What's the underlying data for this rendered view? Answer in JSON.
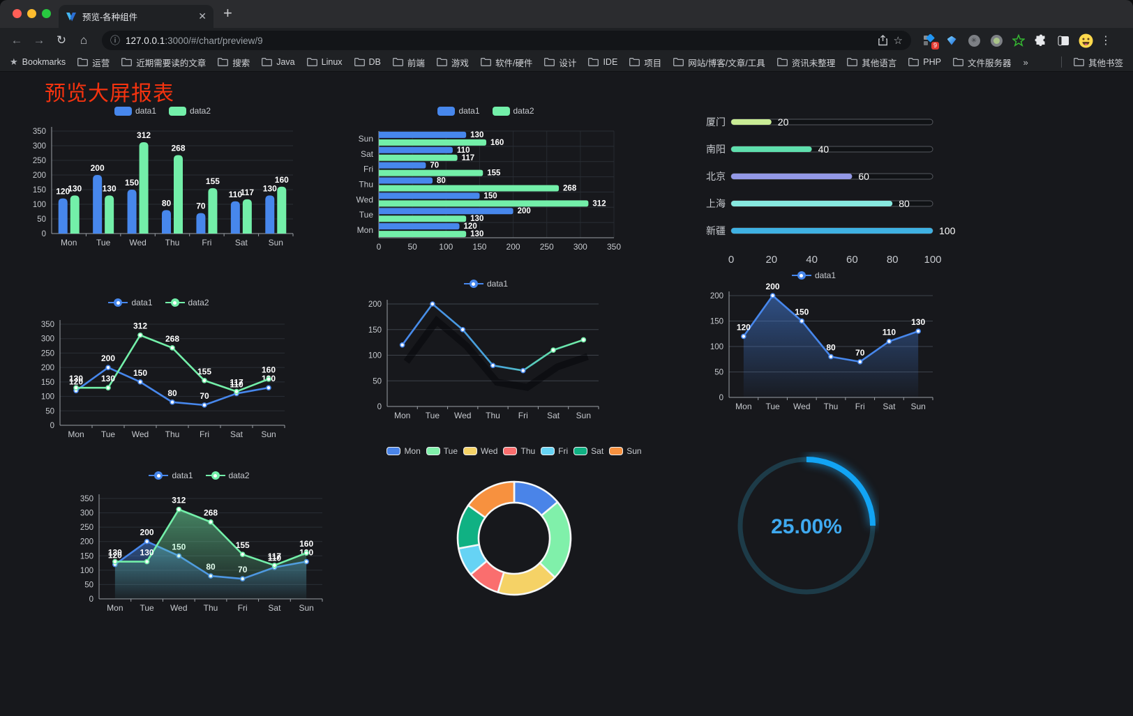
{
  "browser": {
    "tab_title": "预览-各种组件",
    "url_host": "127.0.0.1",
    "url_path": ":3000/#/chart/preview/9",
    "new_tab_label": "+",
    "extensions_badge": "9",
    "bookmarks": [
      {
        "icon": "star",
        "label": "Bookmarks"
      },
      {
        "icon": "folder",
        "label": "运营"
      },
      {
        "icon": "folder",
        "label": "近期需要读的文章"
      },
      {
        "icon": "folder",
        "label": "搜索"
      },
      {
        "icon": "folder",
        "label": "Java"
      },
      {
        "icon": "folder",
        "label": "Linux"
      },
      {
        "icon": "folder",
        "label": "DB"
      },
      {
        "icon": "folder",
        "label": "前端"
      },
      {
        "icon": "folder",
        "label": "游戏"
      },
      {
        "icon": "folder",
        "label": "软件/硬件"
      },
      {
        "icon": "folder",
        "label": "设计"
      },
      {
        "icon": "folder",
        "label": "IDE"
      },
      {
        "icon": "folder",
        "label": "项目"
      },
      {
        "icon": "folder",
        "label": "网站/博客/文章/工具"
      },
      {
        "icon": "folder",
        "label": "资讯未整理"
      },
      {
        "icon": "folder",
        "label": "其他语言"
      },
      {
        "icon": "folder",
        "label": "PHP"
      },
      {
        "icon": "folder",
        "label": "文件服务器"
      },
      {
        "icon": "chevron",
        "label": "»"
      },
      {
        "icon": "folder",
        "label": "其他书签",
        "separator_before": true,
        "pin_right": true
      }
    ]
  },
  "page": {
    "title": "预览大屏报表",
    "title_color": "#F5330F",
    "background": "#17181C"
  },
  "chart_data": [
    {
      "name": "grouped-bar",
      "type": "bar",
      "categories": [
        "Mon",
        "Tue",
        "Wed",
        "Thu",
        "Fri",
        "Sat",
        "Sun"
      ],
      "series": [
        {
          "name": "data1",
          "color": "#4787EC",
          "values": [
            120,
            200,
            150,
            80,
            70,
            110,
            130
          ]
        },
        {
          "name": "data2",
          "color": "#73EFA9",
          "values": [
            130,
            130,
            312,
            268,
            155,
            117,
            160
          ]
        }
      ],
      "ylim": [
        0,
        350
      ],
      "ytick": 50,
      "labels": true,
      "legend_position": "top",
      "grid": true
    },
    {
      "name": "horizontal-grouped-bar",
      "type": "bar-horizontal",
      "categories": [
        "Mon",
        "Tue",
        "Wed",
        "Thu",
        "Fri",
        "Sat",
        "Sun"
      ],
      "category_display_order_top_to_bottom": [
        "Sun",
        "Sat",
        "Fri",
        "Thu",
        "Wed",
        "Tue",
        "Mon"
      ],
      "series": [
        {
          "name": "data1",
          "color": "#4787EC",
          "values": [
            120,
            200,
            150,
            80,
            70,
            110,
            130
          ]
        },
        {
          "name": "data2",
          "color": "#73EFA9",
          "values": [
            130,
            130,
            312,
            268,
            155,
            117,
            160
          ]
        }
      ],
      "xlim": [
        0,
        350
      ],
      "xtick": 50,
      "labels": true,
      "legend_position": "top",
      "grid": true
    },
    {
      "name": "city-progress-bars",
      "type": "bar-horizontal-progress",
      "max": 100,
      "axis_ticks": [
        0,
        20,
        40,
        60,
        80,
        100
      ],
      "items": [
        {
          "label": "厦门",
          "value": 20,
          "color": "#C9EC95"
        },
        {
          "label": "南阳",
          "value": 40,
          "color": "#5FDFAD"
        },
        {
          "label": "北京",
          "value": 60,
          "color": "#9398E6"
        },
        {
          "label": "上海",
          "value": 80,
          "color": "#87E8DF"
        },
        {
          "label": "新疆",
          "value": 100,
          "color": "#3FB1E3"
        }
      ]
    },
    {
      "name": "line-two-series",
      "type": "line",
      "categories": [
        "Mon",
        "Tue",
        "Wed",
        "Thu",
        "Fri",
        "Sat",
        "Sun"
      ],
      "series": [
        {
          "name": "data1",
          "color": "#4787EC",
          "values": [
            120,
            200,
            150,
            80,
            70,
            110,
            130
          ]
        },
        {
          "name": "data2",
          "color": "#73EFA9",
          "values": [
            130,
            130,
            312,
            268,
            155,
            117,
            160
          ]
        }
      ],
      "ylim": [
        0,
        350
      ],
      "ytick": 50,
      "labels": true,
      "legend_position": "top",
      "grid": true
    },
    {
      "name": "gradient-line",
      "type": "line",
      "categories": [
        "Mon",
        "Tue",
        "Wed",
        "Thu",
        "Fri",
        "Sat",
        "Sun"
      ],
      "series": [
        {
          "name": "data1",
          "color": "#4787EC",
          "gradient": [
            "#4787EC",
            "#49A9D8",
            "#5FD9B0",
            "#73EFA9"
          ],
          "values": [
            120,
            200,
            150,
            80,
            70,
            110,
            130
          ],
          "shadow": true
        }
      ],
      "ylim": [
        0,
        200
      ],
      "ytick": 50,
      "labels": false,
      "legend_position": "top",
      "grid": true
    },
    {
      "name": "area-line",
      "type": "area",
      "categories": [
        "Mon",
        "Tue",
        "Wed",
        "Thu",
        "Fri",
        "Sat",
        "Sun"
      ],
      "series": [
        {
          "name": "data1",
          "color": "#4787EC",
          "values": [
            120,
            200,
            150,
            80,
            70,
            110,
            130
          ],
          "area": true
        }
      ],
      "ylim": [
        0,
        200
      ],
      "ytick": 50,
      "labels": true,
      "legend_position": "top",
      "grid": true
    },
    {
      "name": "area-line-two-series",
      "type": "area",
      "categories": [
        "Mon",
        "Tue",
        "Wed",
        "Thu",
        "Fri",
        "Sat",
        "Sun"
      ],
      "series": [
        {
          "name": "data1",
          "color": "#4787EC",
          "values": [
            120,
            200,
            150,
            80,
            70,
            110,
            130
          ],
          "area": true
        },
        {
          "name": "data2",
          "color": "#73EFA9",
          "values": [
            130,
            130,
            312,
            268,
            155,
            117,
            160
          ],
          "area": true
        }
      ],
      "ylim": [
        0,
        350
      ],
      "ytick": 50,
      "labels": true,
      "legend_position": "top",
      "grid": true
    },
    {
      "name": "donut-week",
      "type": "pie",
      "categories": [
        "Mon",
        "Tue",
        "Wed",
        "Thu",
        "Fri",
        "Sat",
        "Sun"
      ],
      "values": [
        120,
        200,
        150,
        80,
        70,
        110,
        130
      ],
      "colors": [
        "#4A84E8",
        "#80F0AA",
        "#F5D266",
        "#FA6E6E",
        "#66D3F4",
        "#10B183",
        "#F7913F"
      ],
      "inner_radius_ratio": 0.63,
      "border_color": "#F5F7F7",
      "legend_position": "top"
    },
    {
      "name": "percent-gauge",
      "type": "gauge",
      "value": 25,
      "display": "25.00%",
      "color": "#12A4F4",
      "track_color": "#1D3B48",
      "text_color": "#3FA9EF"
    }
  ]
}
